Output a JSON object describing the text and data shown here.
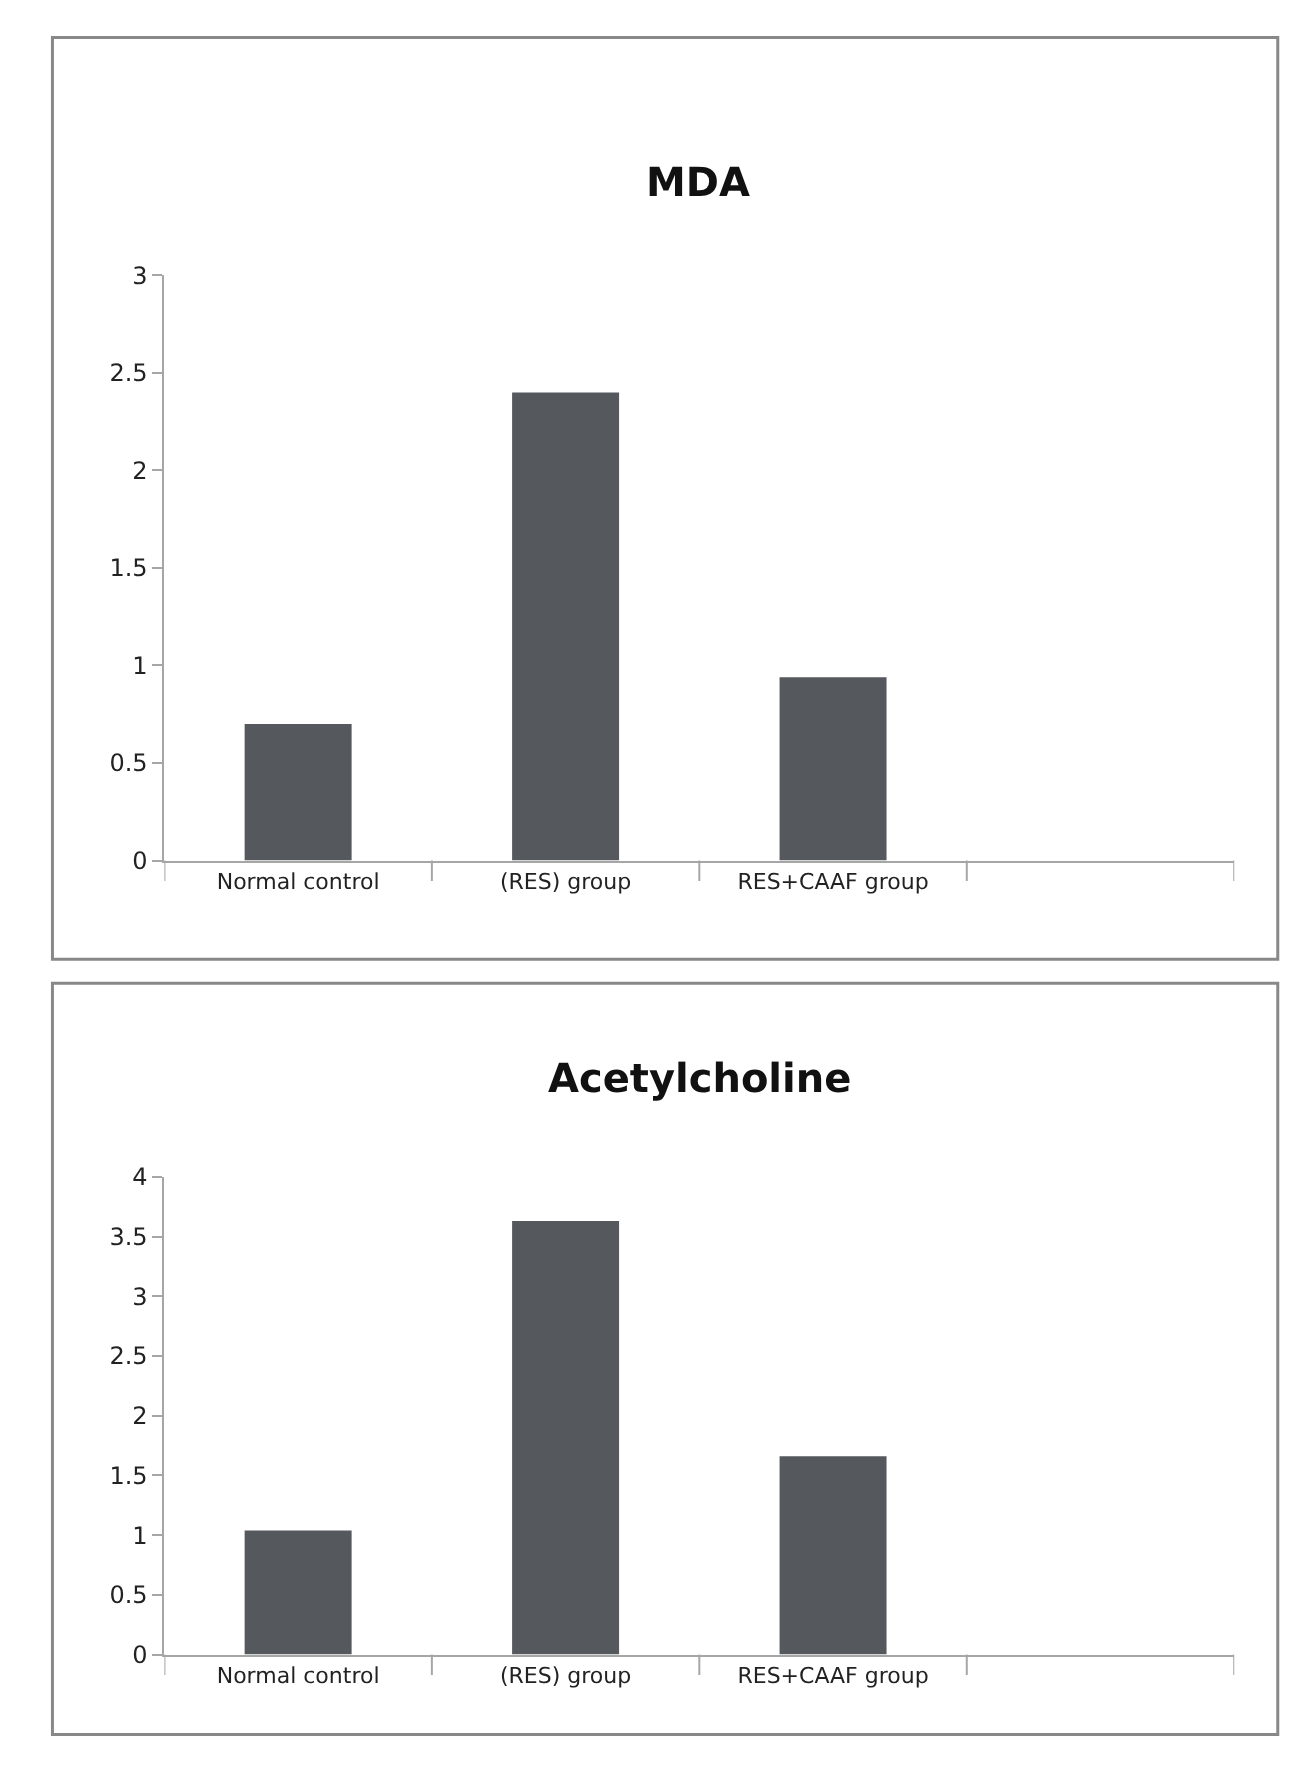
{
  "chart_data": [
    {
      "type": "bar",
      "title": "MDA",
      "categories": [
        "Normal control",
        "(RES) group",
        "RES+CAAF group",
        null
      ],
      "values": [
        0.7,
        2.4,
        0.94,
        null
      ],
      "color": "#55595d",
      "ylim": [
        0,
        3
      ],
      "yticks": [
        0,
        0.5,
        1,
        1.5,
        2,
        2.5,
        3
      ]
    },
    {
      "type": "bar",
      "title": "Acetylcholine",
      "categories": [
        "Normal control",
        "(RES) group",
        "RES+CAAF group",
        null
      ],
      "values": [
        1.04,
        3.63,
        1.66,
        null
      ],
      "color": "#55595d",
      "ylim": [
        0,
        4
      ],
      "yticks": [
        0,
        0.5,
        1,
        1.5,
        2,
        2.5,
        3,
        3.5,
        4
      ]
    }
  ]
}
